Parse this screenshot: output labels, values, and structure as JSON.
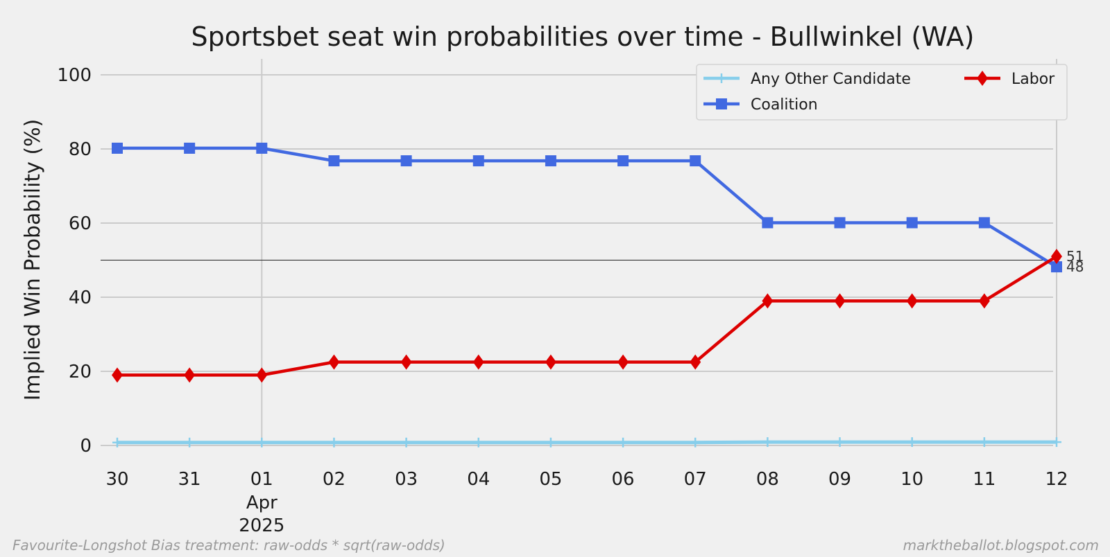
{
  "chart_data": {
    "type": "line",
    "title": "Sportsbet seat win probabilities over time - Bullwinkel (WA)",
    "ylabel": "Implied Win Probability (%)",
    "xlabel": "",
    "ylim": [
      -2,
      104
    ],
    "yticks": [
      0,
      20,
      40,
      60,
      80,
      100
    ],
    "x": [
      "2025-03-30",
      "2025-03-31",
      "2025-04-01",
      "2025-04-02",
      "2025-04-03",
      "2025-04-04",
      "2025-04-05",
      "2025-04-06",
      "2025-04-07",
      "2025-04-08",
      "2025-04-09",
      "2025-04-10",
      "2025-04-11",
      "2025-04-12"
    ],
    "xtick_labels": [
      "30",
      "31",
      "01",
      "02",
      "03",
      "04",
      "05",
      "06",
      "07",
      "08",
      "09",
      "10",
      "11",
      "12"
    ],
    "xtick_sublabels": {
      "01": [
        "Apr",
        "2025"
      ]
    },
    "grid": true,
    "reference_line_y": 50,
    "legend_position": "top-right",
    "series": [
      {
        "name": "Any Other Candidate",
        "color": "#87ceeb",
        "marker": "plus",
        "values": [
          0.8,
          0.8,
          0.8,
          0.8,
          0.8,
          0.8,
          0.8,
          0.8,
          0.8,
          0.9,
          0.9,
          0.9,
          0.9,
          0.9
        ]
      },
      {
        "name": "Coalition",
        "color": "#4169e1",
        "marker": "square",
        "values": [
          80.2,
          80.2,
          80.2,
          76.8,
          76.8,
          76.8,
          76.8,
          76.8,
          76.8,
          60.1,
          60.1,
          60.1,
          60.1,
          48.2
        ]
      },
      {
        "name": "Labor",
        "color": "#dd0000",
        "marker": "diamond",
        "values": [
          19.0,
          19.0,
          19.0,
          22.5,
          22.5,
          22.5,
          22.5,
          22.5,
          22.5,
          39.0,
          39.0,
          39.0,
          39.0,
          51.0
        ]
      }
    ],
    "end_labels": [
      {
        "series": "Labor",
        "text": "51"
      },
      {
        "series": "Coalition",
        "text": "48"
      }
    ],
    "footer_left": "Favourite-Longshot Bias treatment: raw-odds * sqrt(raw-odds)",
    "footer_right": "marktheballot.blogspot.com"
  }
}
